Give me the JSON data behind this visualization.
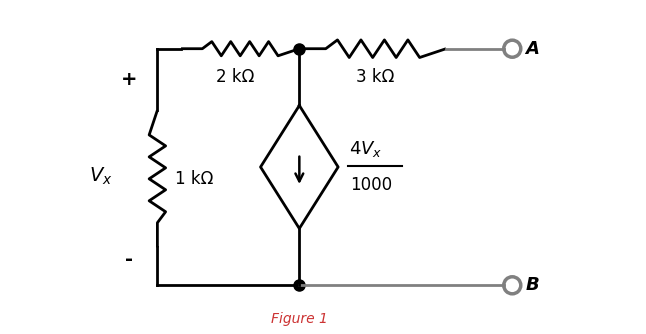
{
  "fig_width": 6.46,
  "fig_height": 3.34,
  "dpi": 100,
  "bg_color": "#ffffff",
  "line_color": "#000000",
  "gray_color": "#808080",
  "line_width": 2.0,
  "figure_label": "Figure 1",
  "label_2k": "2 kΩ",
  "label_3k": "3 kΩ",
  "label_1k": "1 kΩ",
  "label_plus": "+",
  "label_minus": "-",
  "label_A": "A",
  "label_B": "B"
}
